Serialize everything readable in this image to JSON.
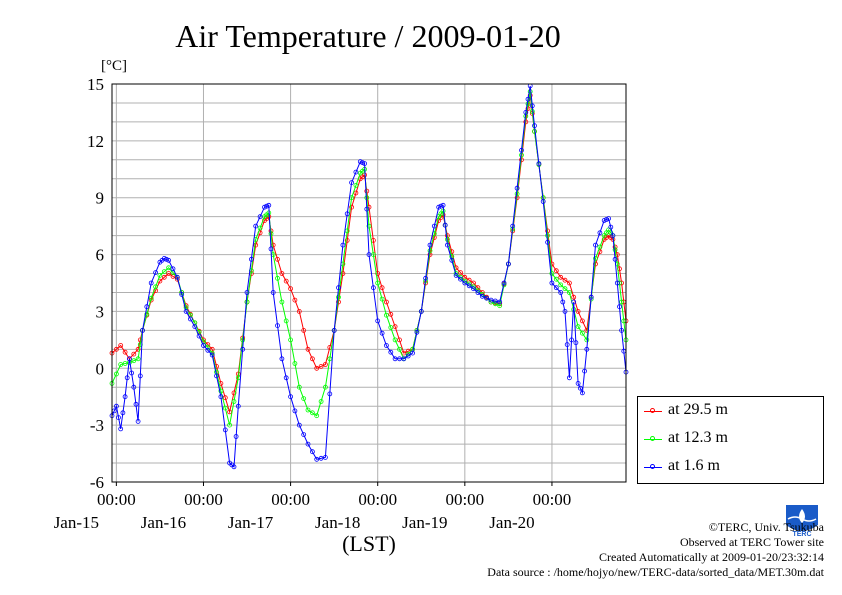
{
  "chart_data": {
    "type": "line",
    "title": "Air Temperature / 2009-01-20",
    "ylabel": "[°C]",
    "xlabel": "(LST)",
    "ylim": [
      -6,
      15
    ],
    "yticks": [
      15,
      12,
      9,
      6,
      3,
      0,
      -3,
      -6
    ],
    "xlim_days": [
      -0.05,
      5.85
    ],
    "xticks": [
      {
        "time": "00:00",
        "date": "Jan-15"
      },
      {
        "time": "00:00",
        "date": "Jan-16"
      },
      {
        "time": "00:00",
        "date": "Jan-17"
      },
      {
        "time": "00:00",
        "date": "Jan-18"
      },
      {
        "time": "00:00",
        "date": "Jan-19"
      },
      {
        "time": "00:00",
        "date": "Jan-20"
      }
    ],
    "grid": true,
    "legend_position": "bottom-right",
    "series": [
      {
        "name": "at 29.5 m",
        "color": "#ff0000",
        "points": [
          [
            -0.05,
            0.8
          ],
          [
            0.05,
            1.2
          ],
          [
            0.15,
            0.5
          ],
          [
            0.25,
            1.0
          ],
          [
            0.3,
            2.0
          ],
          [
            0.4,
            3.6
          ],
          [
            0.5,
            4.6
          ],
          [
            0.6,
            5.0
          ],
          [
            0.7,
            4.7
          ],
          [
            0.8,
            3.3
          ],
          [
            0.9,
            2.4
          ],
          [
            1.0,
            1.5
          ],
          [
            1.1,
            1.0
          ],
          [
            1.2,
            -0.8
          ],
          [
            1.3,
            -2.3
          ],
          [
            1.4,
            -0.3
          ],
          [
            1.5,
            3.5
          ],
          [
            1.6,
            6.5
          ],
          [
            1.7,
            7.8
          ],
          [
            1.75,
            8.0
          ],
          [
            1.8,
            6.5
          ],
          [
            1.9,
            5.0
          ],
          [
            2.0,
            4.2
          ],
          [
            2.1,
            3.0
          ],
          [
            2.2,
            1.0
          ],
          [
            2.3,
            0.0
          ],
          [
            2.4,
            0.2
          ],
          [
            2.5,
            2.0
          ],
          [
            2.6,
            5.0
          ],
          [
            2.7,
            8.5
          ],
          [
            2.8,
            10.0
          ],
          [
            2.85,
            10.2
          ],
          [
            2.9,
            8.5
          ],
          [
            3.0,
            5.0
          ],
          [
            3.1,
            3.5
          ],
          [
            3.2,
            2.2
          ],
          [
            3.3,
            0.8
          ],
          [
            3.4,
            1.0
          ],
          [
            3.5,
            3.0
          ],
          [
            3.6,
            6.0
          ],
          [
            3.7,
            7.8
          ],
          [
            3.75,
            8.1
          ],
          [
            3.8,
            7.0
          ],
          [
            3.9,
            5.3
          ],
          [
            4.0,
            4.8
          ],
          [
            4.1,
            4.5
          ],
          [
            4.2,
            4.0
          ],
          [
            4.3,
            3.5
          ],
          [
            4.4,
            3.4
          ],
          [
            4.5,
            5.5
          ],
          [
            4.6,
            9.0
          ],
          [
            4.7,
            13.0
          ],
          [
            4.75,
            14.4
          ],
          [
            4.8,
            12.5
          ],
          [
            4.9,
            9.0
          ],
          [
            5.0,
            5.5
          ],
          [
            5.1,
            4.8
          ],
          [
            5.2,
            4.5
          ],
          [
            5.3,
            3.0
          ],
          [
            5.4,
            2.0
          ],
          [
            5.5,
            5.5
          ],
          [
            5.6,
            6.8
          ],
          [
            5.65,
            7.0
          ],
          [
            5.7,
            6.8
          ],
          [
            5.75,
            6.0
          ],
          [
            5.8,
            4.5
          ],
          [
            5.85,
            2.5
          ]
        ]
      },
      {
        "name": "at 12.3 m",
        "color": "#00ff00",
        "points": [
          [
            -0.05,
            -0.8
          ],
          [
            0.05,
            0.2
          ],
          [
            0.15,
            0.3
          ],
          [
            0.25,
            0.5
          ],
          [
            0.3,
            2.0
          ],
          [
            0.4,
            3.7
          ],
          [
            0.5,
            4.9
          ],
          [
            0.6,
            5.3
          ],
          [
            0.7,
            4.8
          ],
          [
            0.8,
            3.2
          ],
          [
            0.9,
            2.4
          ],
          [
            1.0,
            1.4
          ],
          [
            1.1,
            0.8
          ],
          [
            1.2,
            -1.2
          ],
          [
            1.3,
            -3.0
          ],
          [
            1.4,
            -0.5
          ],
          [
            1.5,
            3.5
          ],
          [
            1.6,
            6.8
          ],
          [
            1.7,
            8.0
          ],
          [
            1.75,
            8.2
          ],
          [
            1.8,
            6.0
          ],
          [
            1.9,
            3.5
          ],
          [
            2.0,
            1.5
          ],
          [
            2.1,
            -1.0
          ],
          [
            2.2,
            -2.2
          ],
          [
            2.3,
            -2.5
          ],
          [
            2.4,
            -1.0
          ],
          [
            2.5,
            2.0
          ],
          [
            2.6,
            5.5
          ],
          [
            2.7,
            9.0
          ],
          [
            2.8,
            10.3
          ],
          [
            2.85,
            10.5
          ],
          [
            2.9,
            7.5
          ],
          [
            3.0,
            4.5
          ],
          [
            3.1,
            2.8
          ],
          [
            3.2,
            1.5
          ],
          [
            3.3,
            0.5
          ],
          [
            3.4,
            1.0
          ],
          [
            3.5,
            3.0
          ],
          [
            3.6,
            6.2
          ],
          [
            3.7,
            8.0
          ],
          [
            3.75,
            8.3
          ],
          [
            3.8,
            6.8
          ],
          [
            3.9,
            5.0
          ],
          [
            4.0,
            4.6
          ],
          [
            4.1,
            4.3
          ],
          [
            4.2,
            3.9
          ],
          [
            4.3,
            3.5
          ],
          [
            4.4,
            3.3
          ],
          [
            4.5,
            5.5
          ],
          [
            4.6,
            9.2
          ],
          [
            4.7,
            13.3
          ],
          [
            4.75,
            14.6
          ],
          [
            4.8,
            12.5
          ],
          [
            4.9,
            9.0
          ],
          [
            5.0,
            5.0
          ],
          [
            5.1,
            4.4
          ],
          [
            5.2,
            4.0
          ],
          [
            5.3,
            2.2
          ],
          [
            5.4,
            1.5
          ],
          [
            5.5,
            5.8
          ],
          [
            5.6,
            7.0
          ],
          [
            5.65,
            7.3
          ],
          [
            5.7,
            7.0
          ],
          [
            5.75,
            5.5
          ],
          [
            5.8,
            3.5
          ],
          [
            5.85,
            1.5
          ]
        ]
      },
      {
        "name": "at 1.6 m",
        "color": "#0000ff",
        "points": [
          [
            -0.05,
            -2.5
          ],
          [
            0.0,
            -2.0
          ],
          [
            0.05,
            -3.2
          ],
          [
            0.1,
            -1.5
          ],
          [
            0.15,
            0.5
          ],
          [
            0.2,
            -1.0
          ],
          [
            0.25,
            -2.8
          ],
          [
            0.3,
            2.0
          ],
          [
            0.4,
            4.5
          ],
          [
            0.5,
            5.6
          ],
          [
            0.55,
            5.8
          ],
          [
            0.6,
            5.7
          ],
          [
            0.7,
            4.8
          ],
          [
            0.8,
            3.0
          ],
          [
            0.9,
            2.2
          ],
          [
            1.0,
            1.2
          ],
          [
            1.1,
            0.7
          ],
          [
            1.2,
            -1.5
          ],
          [
            1.3,
            -5.0
          ],
          [
            1.35,
            -5.2
          ],
          [
            1.4,
            -2.0
          ],
          [
            1.5,
            4.0
          ],
          [
            1.6,
            7.5
          ],
          [
            1.7,
            8.5
          ],
          [
            1.75,
            8.6
          ],
          [
            1.8,
            4.0
          ],
          [
            1.9,
            0.5
          ],
          [
            2.0,
            -1.5
          ],
          [
            2.1,
            -3.0
          ],
          [
            2.2,
            -4.0
          ],
          [
            2.3,
            -4.8
          ],
          [
            2.4,
            -4.7
          ],
          [
            2.5,
            2.0
          ],
          [
            2.6,
            6.5
          ],
          [
            2.7,
            9.8
          ],
          [
            2.8,
            10.9
          ],
          [
            2.85,
            10.8
          ],
          [
            2.9,
            6.0
          ],
          [
            3.0,
            2.5
          ],
          [
            3.1,
            1.2
          ],
          [
            3.2,
            0.5
          ],
          [
            3.3,
            0.5
          ],
          [
            3.4,
            0.8
          ],
          [
            3.5,
            3.0
          ],
          [
            3.6,
            6.5
          ],
          [
            3.7,
            8.5
          ],
          [
            3.75,
            8.6
          ],
          [
            3.8,
            6.5
          ],
          [
            3.9,
            4.9
          ],
          [
            4.0,
            4.5
          ],
          [
            4.1,
            4.2
          ],
          [
            4.2,
            3.8
          ],
          [
            4.3,
            3.6
          ],
          [
            4.4,
            3.5
          ],
          [
            4.5,
            5.5
          ],
          [
            4.6,
            9.5
          ],
          [
            4.7,
            13.5
          ],
          [
            4.75,
            14.9
          ],
          [
            4.8,
            12.8
          ],
          [
            4.9,
            8.8
          ],
          [
            5.0,
            4.5
          ],
          [
            5.1,
            4.0
          ],
          [
            5.15,
            3.0
          ],
          [
            5.2,
            -0.5
          ],
          [
            5.25,
            3.5
          ],
          [
            5.3,
            -0.8
          ],
          [
            5.35,
            -1.3
          ],
          [
            5.4,
            1.0
          ],
          [
            5.5,
            6.5
          ],
          [
            5.6,
            7.8
          ],
          [
            5.65,
            7.9
          ],
          [
            5.7,
            7.0
          ],
          [
            5.75,
            4.5
          ],
          [
            5.8,
            2.0
          ],
          [
            5.85,
            -0.2
          ]
        ]
      }
    ]
  },
  "credits": {
    "copyright": "©TERC, Univ. Tsukuba",
    "observed": "Observed at TERC Tower site",
    "created": "Created Automatically at 2009-01-20/23:32:14",
    "source": "Data source : /home/hojyo/new/TERC-data/sorted_data/MET.30m.dat"
  },
  "logo": {
    "text": "TERC",
    "color": "#1a5bc8"
  }
}
